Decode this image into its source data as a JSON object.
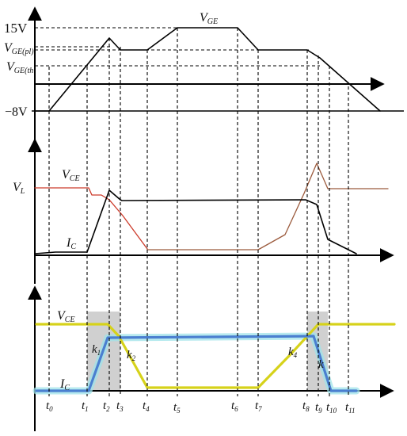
{
  "labels": {
    "v15": "15V",
    "vneg8": "−8V",
    "vge_pl_main": "V",
    "vge_pl_sub": "GE(pl)",
    "vge_th_main": "V",
    "vge_th_sub": "GE(th",
    "vge_wave_main": "V",
    "vge_wave_sub": "GE",
    "vl_main": "V",
    "vl_sub": "L",
    "vce1_main": "V",
    "vce1_sub": "CE",
    "ic1_main": "I",
    "ic1_sub": "C",
    "vce2_main": "V",
    "vce2_sub": "CE",
    "ic2_main": "I",
    "ic2_sub": "C"
  },
  "slopes": [
    {
      "main": "k",
      "sub": "1"
    },
    {
      "main": "k",
      "sub": "2"
    },
    {
      "main": "k",
      "sub": "4"
    },
    {
      "main": "k",
      "sub": ""
    }
  ],
  "time_labels": [
    {
      "main": "t",
      "sub": "0"
    },
    {
      "main": "t",
      "sub": "1"
    },
    {
      "main": "t",
      "sub": "2"
    },
    {
      "main": "t",
      "sub": "3"
    },
    {
      "main": "t",
      "sub": "4"
    },
    {
      "main": "t",
      "sub": "5"
    },
    {
      "main": "t",
      "sub": "6"
    },
    {
      "main": "t",
      "sub": "7"
    },
    {
      "main": "t",
      "sub": "8"
    },
    {
      "main": "t",
      "sub": "9"
    },
    {
      "main": "t",
      "sub": "10"
    },
    {
      "main": "t",
      "sub": "11"
    }
  ],
  "colors": {
    "axes": "#000000",
    "vce_ideal": "#cc3a2a",
    "vce_ideal_drop": "#9b5a3c",
    "vce_sim": "#d6d21a",
    "ic_sim": "#4a7fd0",
    "ic_sim_glow": "#9fe3ea",
    "shade": "#d0d0d0"
  }
}
